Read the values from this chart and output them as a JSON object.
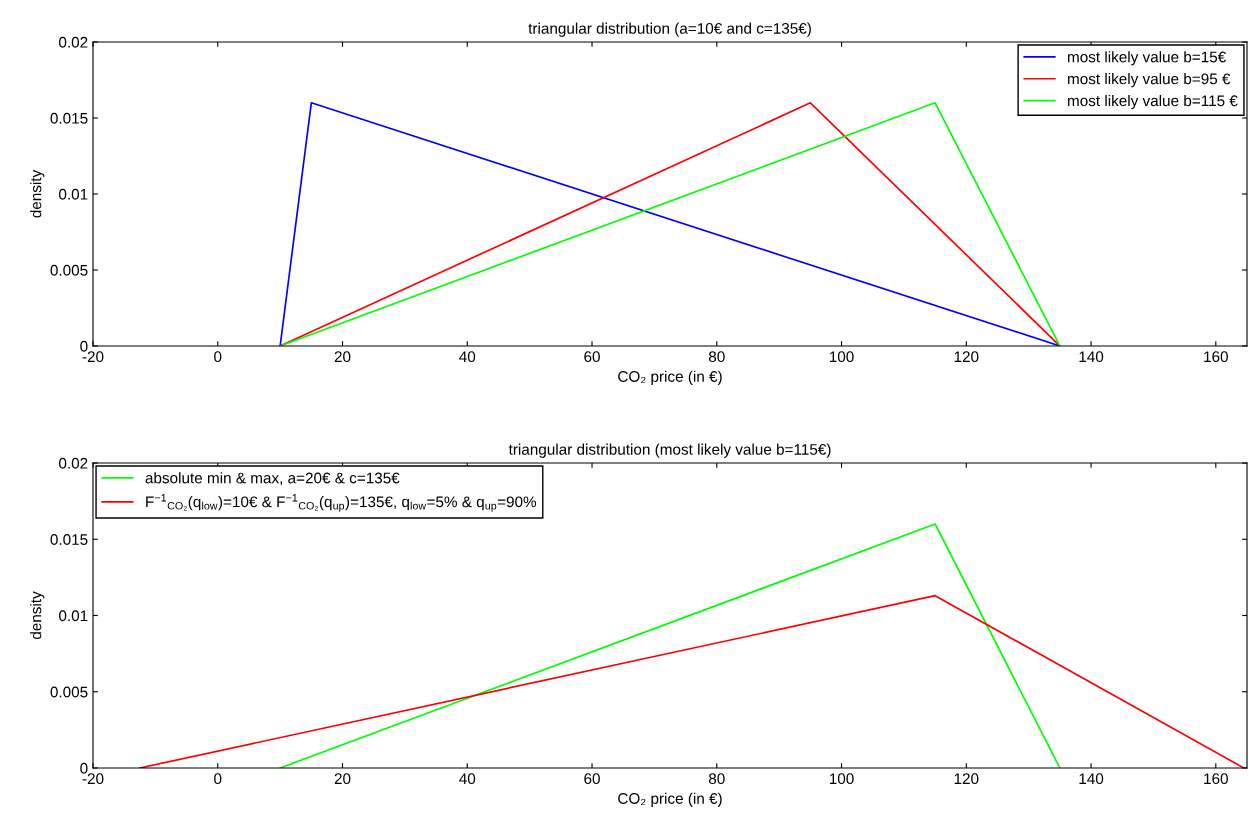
{
  "chart_data": [
    {
      "type": "line",
      "title": "triangular distribution (a=10€ and c=135€)",
      "xlabel": "CO₂ price (in €)",
      "ylabel": "density",
      "xlim": [
        -20,
        165
      ],
      "xticks": [
        -20,
        0,
        20,
        40,
        60,
        80,
        100,
        120,
        140,
        160
      ],
      "ylim": [
        0,
        0.02
      ],
      "yticks": [
        0,
        0.005,
        0.01,
        0.015,
        0.02
      ],
      "grid": false,
      "legend": "top right",
      "marker": "none",
      "line_style": "solid",
      "series": [
        {
          "name": "most likely value b=15€",
          "color": "#0000ff",
          "x": [
            10,
            15,
            135
          ],
          "values": [
            0,
            0.016,
            0
          ]
        },
        {
          "name": "most likely value b=95 €",
          "color": "#ff0000",
          "x": [
            10,
            95,
            135
          ],
          "values": [
            0,
            0.016,
            0
          ]
        },
        {
          "name": "most likely value b=115 €",
          "color": "#00ff00",
          "x": [
            10,
            115,
            135
          ],
          "values": [
            0,
            0.016,
            0
          ]
        }
      ]
    },
    {
      "type": "line",
      "title": "triangular distribution (most likely value b=115€)",
      "xlabel": "CO₂ price (in €)",
      "ylabel": "density",
      "xlim": [
        -20,
        165
      ],
      "xticks": [
        -20,
        0,
        20,
        40,
        60,
        80,
        100,
        120,
        140,
        160
      ],
      "ylim": [
        0,
        0.02
      ],
      "yticks": [
        0,
        0.005,
        0.01,
        0.015,
        0.02
      ],
      "grid": false,
      "legend": "top left",
      "marker": "none",
      "line_style": "solid",
      "series": [
        {
          "name": "absolute min & max, a=20€ & c=135€",
          "color": "#00ff00",
          "x": [
            10,
            115,
            135
          ],
          "values": [
            0,
            0.016,
            0
          ]
        },
        {
          "name": "F$^{−1}$$_{CO₂}$(q$_{low}$)=10€ & F$^{−1}$$_{CO₂}$(q$_{up}$)=135€, q$_{low}$=5% & q$_{up}$=90%",
          "color": "#ff0000",
          "x": [
            -12.5,
            115,
            164.5
          ],
          "values": [
            0,
            0.0113,
            0
          ]
        }
      ]
    }
  ]
}
